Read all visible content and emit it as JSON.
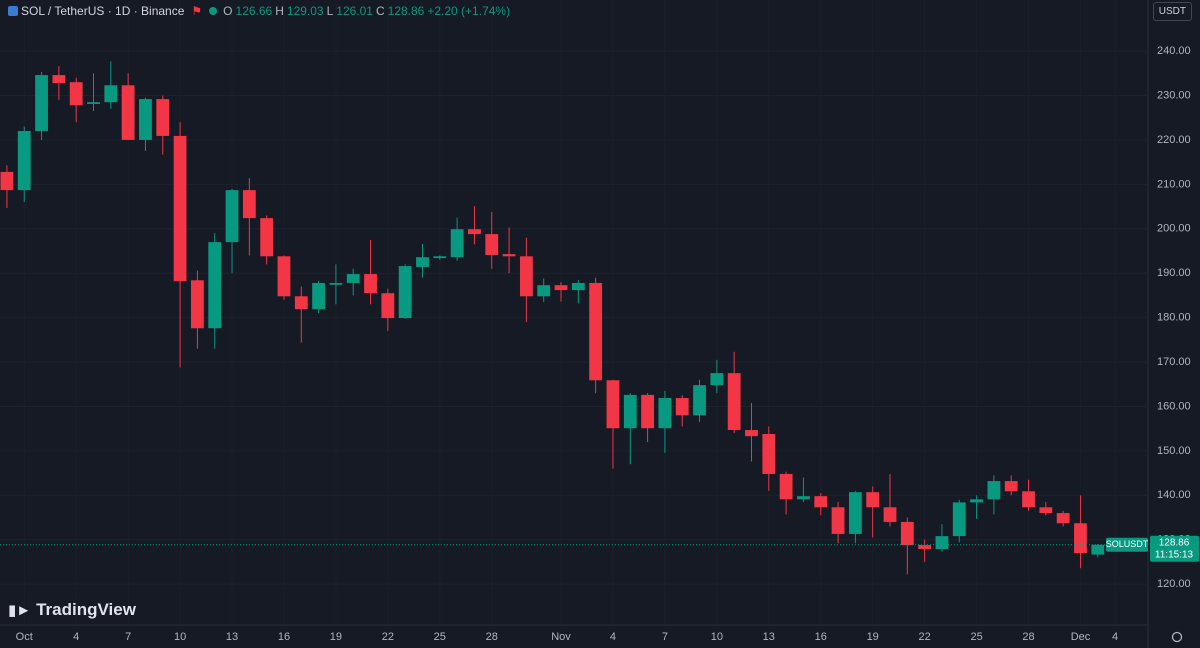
{
  "header": {
    "symbol": "SOL / TetherUS · 1D · Binance",
    "open_key": "O",
    "open": "126.66",
    "high_key": "H",
    "high": "129.03",
    "low_key": "L",
    "low": "126.01",
    "close_key": "C",
    "close": "128.86",
    "change": "+2.20 (+1.74%)",
    "currency": "USDT",
    "brand": "TradingView"
  },
  "chart_data": {
    "type": "candlestick",
    "up_color": "#089981",
    "down_color": "#f23645",
    "grid": true,
    "open": [
      212.8,
      208.7,
      222.0,
      234.6,
      233.0,
      228.1,
      228.5,
      232.3,
      220.0,
      229.2,
      220.9,
      188.4,
      177.6,
      197.0,
      208.7,
      202.4,
      193.8,
      184.8,
      181.9,
      187.4,
      187.8,
      189.8,
      185.5,
      179.9,
      191.4,
      193.4,
      193.6,
      199.9,
      198.8,
      194.3,
      193.8,
      184.8,
      187.3,
      186.2,
      187.8,
      165.9,
      155.1,
      162.6,
      155.1,
      161.9,
      158.0,
      164.8,
      167.5,
      154.7,
      153.8,
      144.8,
      139.1,
      139.8,
      137.3,
      131.3,
      140.7,
      137.3,
      134.0,
      128.8,
      127.9,
      130.8,
      138.4,
      139.1,
      143.2,
      140.9,
      137.3,
      136.0,
      133.7,
      126.66
    ],
    "high": [
      214.3,
      223.0,
      235.3,
      236.6,
      234.0,
      235.0,
      237.7,
      235.0,
      229.5,
      230.0,
      224.0,
      190.6,
      199.0,
      209.0,
      211.4,
      203.0,
      194.0,
      187.0,
      188.3,
      192.0,
      191.0,
      197.5,
      186.5,
      192.0,
      196.6,
      194.0,
      202.5,
      205.1,
      203.8,
      200.3,
      198.0,
      188.8,
      188.0,
      188.5,
      189.0,
      166.0,
      163.0,
      163.0,
      163.5,
      162.5,
      166.0,
      170.5,
      172.3,
      160.8,
      155.5,
      145.3,
      144.0,
      140.5,
      138.5,
      141.0,
      142.0,
      144.8,
      135.0,
      130.0,
      133.5,
      139.0,
      140.0,
      144.5,
      144.5,
      143.5,
      138.5,
      136.5,
      140.0,
      129.03
    ],
    "low": [
      204.7,
      206.0,
      220.0,
      229.0,
      224.0,
      226.5,
      227.0,
      220.0,
      217.5,
      216.7,
      168.8,
      173.0,
      173.0,
      190.0,
      194.0,
      192.0,
      184.0,
      174.4,
      181.0,
      183.0,
      185.0,
      183.0,
      177.0,
      179.7,
      189.0,
      193.0,
      192.8,
      196.5,
      191.0,
      190.0,
      179.0,
      183.5,
      183.6,
      183.2,
      163.0,
      146.0,
      147.0,
      152.0,
      149.5,
      155.5,
      156.5,
      163.0,
      154.0,
      147.6,
      141.0,
      135.7,
      138.5,
      135.5,
      129.2,
      129.2,
      130.5,
      133.0,
      122.2,
      125.0,
      127.3,
      129.4,
      134.7,
      135.7,
      140.0,
      136.5,
      135.5,
      133.0,
      123.6,
      126.01
    ],
    "close": [
      208.7,
      222.0,
      234.6,
      232.8,
      227.8,
      228.5,
      232.3,
      220.0,
      229.2,
      220.9,
      188.2,
      177.6,
      197.0,
      208.7,
      202.4,
      193.8,
      184.8,
      181.9,
      187.8,
      187.8,
      189.8,
      185.5,
      179.9,
      191.6,
      193.6,
      193.8,
      199.9,
      198.8,
      194.1,
      193.8,
      184.8,
      187.3,
      186.2,
      187.8,
      165.9,
      155.1,
      162.6,
      155.1,
      161.9,
      158.0,
      164.8,
      167.5,
      154.7,
      153.3,
      144.8,
      139.1,
      139.8,
      137.3,
      131.3,
      140.7,
      137.3,
      134.0,
      128.8,
      127.9,
      130.8,
      138.4,
      139.1,
      143.2,
      140.9,
      137.3,
      136.0,
      133.7,
      127.0,
      128.86
    ],
    "xlim": [
      -0.4,
      65.9
    ],
    "xticks": [
      {
        "value": 1,
        "label": "Oct"
      },
      4,
      7,
      10,
      13,
      16,
      19,
      22,
      25,
      28,
      {
        "value": 32,
        "label": "Nov"
      },
      {
        "value": 35,
        "label": "4"
      },
      {
        "value": 38,
        "label": "7"
      },
      {
        "value": 41,
        "label": "10"
      },
      {
        "value": 44,
        "label": "13"
      },
      {
        "value": 47,
        "label": "16"
      },
      {
        "value": 50,
        "label": "19"
      },
      {
        "value": 53,
        "label": "22"
      },
      {
        "value": 56,
        "label": "25"
      },
      {
        "value": 59,
        "label": "28"
      },
      {
        "value": 62,
        "label": "Dec"
      },
      {
        "value": 64,
        "label": "4"
      }
    ],
    "ylim": [
      110.8,
      251.5
    ],
    "yticks": [
      {
        "value": 120,
        "label": "120.00"
      },
      {
        "value": 130,
        "label": "130.00"
      },
      {
        "value": 140,
        "label": "140.00"
      },
      {
        "value": 150,
        "label": "150.00"
      },
      {
        "value": 160,
        "label": "160.00"
      },
      {
        "value": 170,
        "label": "170.00"
      },
      {
        "value": 180,
        "label": "180.00"
      },
      {
        "value": 190,
        "label": "190.00"
      },
      {
        "value": 200,
        "label": "200.00"
      },
      {
        "value": 210,
        "label": "210.00"
      },
      {
        "value": 220,
        "label": "220.00"
      },
      {
        "value": 230,
        "label": "230.00"
      },
      {
        "value": 240,
        "label": "240.00"
      }
    ],
    "price_tag": {
      "symbol": "SOLUSDT",
      "price": "128.86",
      "countdown": "11:15:13"
    }
  }
}
